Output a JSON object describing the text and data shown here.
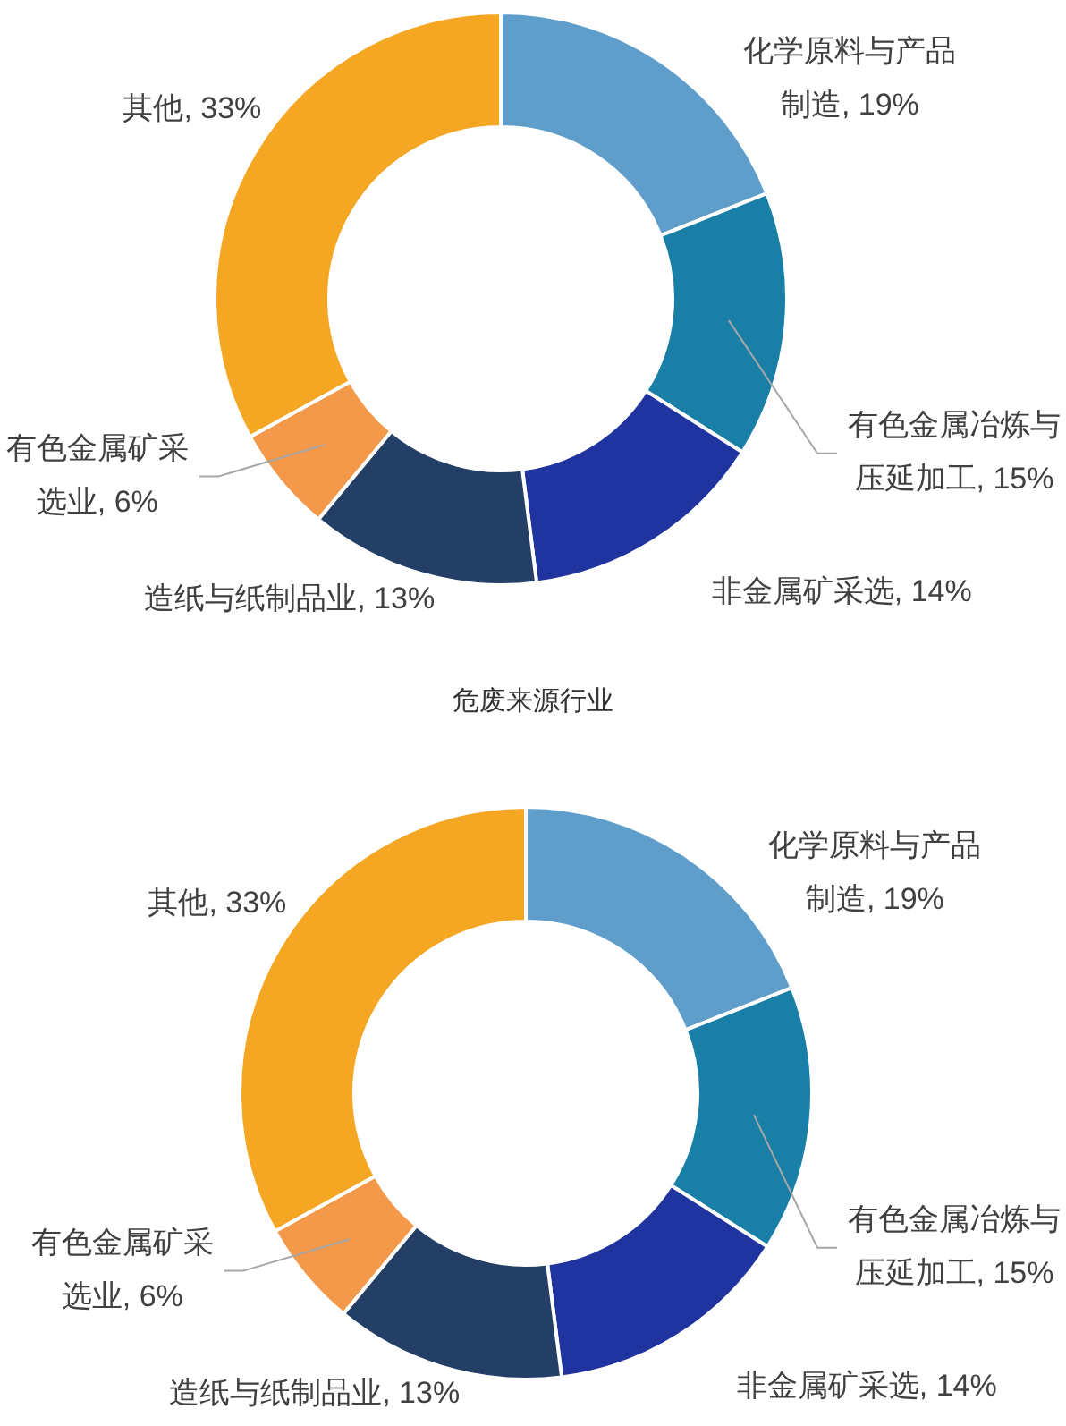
{
  "chart_data": [
    {
      "type": "donut",
      "title": "危废来源行业",
      "categories": [
        "化学原料与产品制造",
        "有色金属冶炼与压延加工",
        "非金属矿采选",
        "造纸与纸制品业",
        "有色金属矿采选业",
        "其他"
      ],
      "values": [
        19,
        15,
        14,
        13,
        6,
        33
      ],
      "value_labels": [
        "19%",
        "15%",
        "14%",
        "13%",
        "6%",
        "33%"
      ],
      "colors": [
        "#5f9ecb",
        "#1a7fa6",
        "#2034a0",
        "#243f66",
        "#f4994a",
        "#f5a623"
      ]
    },
    {
      "type": "donut",
      "categories": [
        "化学原料与产品制造",
        "有色金属冶炼与压延加工",
        "非金属矿采选",
        "造纸与纸制品业",
        "有色金属矿采选业",
        "其他"
      ],
      "values": [
        19,
        15,
        14,
        13,
        6,
        33
      ],
      "value_labels": [
        "19%",
        "15%",
        "14%",
        "13%",
        "6%",
        "33%"
      ],
      "colors": [
        "#5f9ecb",
        "#1a7fa6",
        "#2034a0",
        "#243f66",
        "#f4994a",
        "#f5a623"
      ]
    }
  ]
}
